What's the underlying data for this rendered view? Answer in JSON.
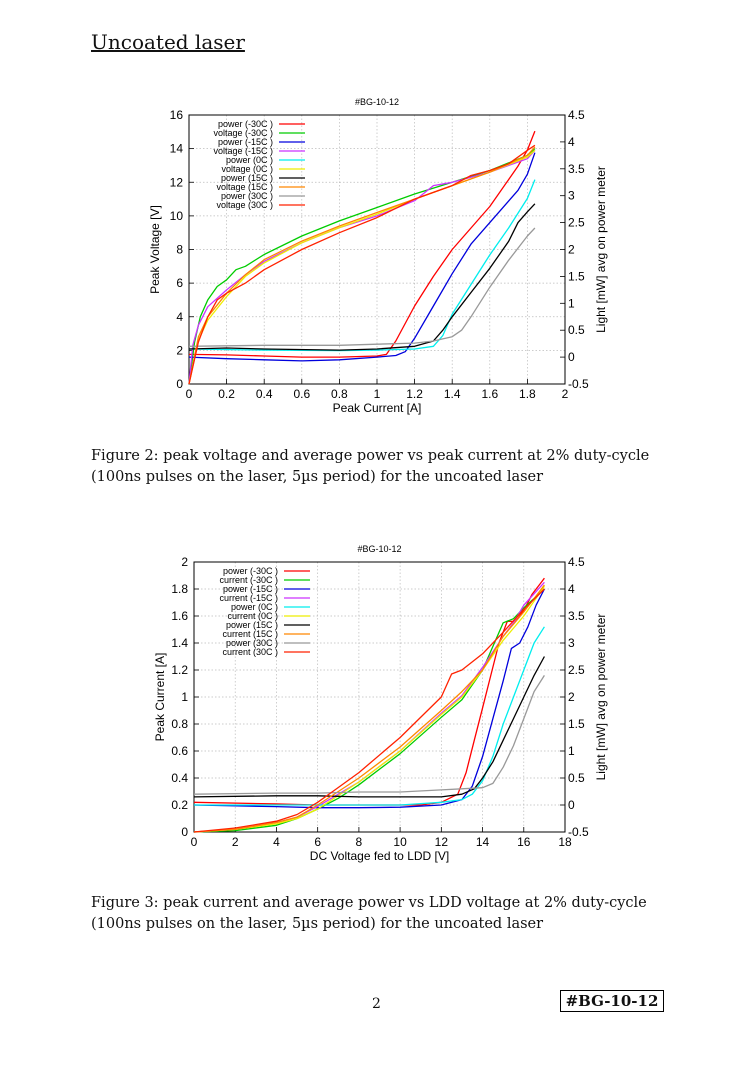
{
  "section_title": "Uncoated laser",
  "figures": [
    {
      "caption": "Figure 2: peak voltage and average power vs peak current at 2% duty-cycle (100ns pulses on the laser, 5µs period) for the uncoated laser",
      "chart_data": {
        "type": "line",
        "title": "#BG-10-12",
        "xlabel": "Peak Current [A]",
        "ylabel": "Peak Voltage [V]",
        "y2label": "Light [mW] avg on power meter",
        "xlim": [
          0,
          2
        ],
        "ylim": [
          0,
          16
        ],
        "y2lim": [
          -0.5,
          4.5
        ],
        "xticks": [
          "0",
          "0.2",
          "0.4",
          "0.6",
          "0.8",
          "1",
          "1.2",
          "1.4",
          "1.6",
          "1.8",
          "2"
        ],
        "yticks": [
          "0",
          "2",
          "4",
          "6",
          "8",
          "10",
          "12",
          "14",
          "16"
        ],
        "y2ticks": [
          "-0.5",
          "0",
          "0.5",
          "1",
          "1.5",
          "2",
          "2.5",
          "3",
          "3.5",
          "4",
          "4.5"
        ],
        "grid": true,
        "legend_position": "top-left",
        "series": [
          {
            "name": "power (-30C )",
            "color": "#ff0000",
            "axis": "y2",
            "x": [
              0,
              0.2,
              0.4,
              0.6,
              0.8,
              1.0,
              1.05,
              1.1,
              1.2,
              1.3,
              1.4,
              1.5,
              1.6,
              1.7,
              1.75,
              1.8,
              1.84
            ],
            "y": [
              0.05,
              0.04,
              0.02,
              0.0,
              0.0,
              0.02,
              0.05,
              0.3,
              0.95,
              1.5,
              2.0,
              2.4,
              2.8,
              3.3,
              3.55,
              3.85,
              4.2
            ]
          },
          {
            "name": "voltage (-30C )",
            "color": "#00cc00",
            "axis": "y",
            "x": [
              0,
              0.03,
              0.06,
              0.1,
              0.15,
              0.2,
              0.25,
              0.3,
              0.4,
              0.6,
              0.8,
              1.0,
              1.2,
              1.4,
              1.6,
              1.8,
              1.84
            ],
            "y": [
              0,
              2.5,
              4.0,
              5.0,
              5.8,
              6.2,
              6.8,
              7.0,
              7.7,
              8.8,
              9.7,
              10.5,
              11.3,
              12.0,
              12.7,
              13.6,
              14.0
            ]
          },
          {
            "name": "power (-15C )",
            "color": "#0000dd",
            "axis": "y2",
            "x": [
              0,
              0.2,
              0.4,
              0.6,
              0.8,
              1.0,
              1.1,
              1.15,
              1.2,
              1.3,
              1.4,
              1.5,
              1.6,
              1.7,
              1.75,
              1.8,
              1.84
            ],
            "y": [
              0.0,
              -0.03,
              -0.05,
              -0.07,
              -0.05,
              0.0,
              0.03,
              0.1,
              0.35,
              0.95,
              1.55,
              2.1,
              2.5,
              2.9,
              3.1,
              3.4,
              3.8
            ]
          },
          {
            "name": "voltage (-15C )",
            "color": "#cc33ff",
            "axis": "y",
            "x": [
              0,
              0.02,
              0.05,
              0.1,
              0.2,
              0.3,
              0.4,
              0.6,
              0.8,
              1.0,
              1.2,
              1.3,
              1.4,
              1.6,
              1.8,
              1.84
            ],
            "y": [
              0,
              2.3,
              3.5,
              4.6,
              5.6,
              6.5,
              7.3,
              8.4,
              9.3,
              10.0,
              10.9,
              11.8,
              12.0,
              12.6,
              13.4,
              13.9
            ]
          },
          {
            "name": "power (0C )",
            "color": "#00eeee",
            "axis": "y2",
            "x": [
              0,
              0.4,
              0.8,
              1.0,
              1.2,
              1.3,
              1.35,
              1.4,
              1.5,
              1.6,
              1.7,
              1.8,
              1.84
            ],
            "y": [
              0.15,
              0.13,
              0.12,
              0.13,
              0.15,
              0.2,
              0.4,
              0.8,
              1.35,
              1.9,
              2.4,
              2.95,
              3.3
            ]
          },
          {
            "name": "voltage (0C )",
            "color": "#eeee00",
            "axis": "y",
            "x": [
              0,
              0.05,
              0.1,
              0.2,
              0.3,
              0.4,
              0.6,
              0.8,
              1.0,
              1.2,
              1.4,
              1.6,
              1.8,
              1.84
            ],
            "y": [
              0,
              2.6,
              3.8,
              5.2,
              6.4,
              7.2,
              8.4,
              9.3,
              10.1,
              11.0,
              11.8,
              12.6,
              13.5,
              13.9
            ]
          },
          {
            "name": "power (15C )",
            "color": "#000000",
            "axis": "y2",
            "x": [
              0,
              0.2,
              0.4,
              0.8,
              1.0,
              1.2,
              1.3,
              1.35,
              1.4,
              1.5,
              1.6,
              1.7,
              1.75,
              1.8,
              1.84
            ],
            "y": [
              0.15,
              0.17,
              0.15,
              0.13,
              0.15,
              0.2,
              0.3,
              0.5,
              0.75,
              1.2,
              1.65,
              2.15,
              2.5,
              2.7,
              2.85
            ]
          },
          {
            "name": "voltage (15C )",
            "color": "#ff8800",
            "axis": "y",
            "x": [
              0,
              0.05,
              0.1,
              0.2,
              0.3,
              0.4,
              0.6,
              0.8,
              1.0,
              1.2,
              1.4,
              1.6,
              1.8,
              1.84
            ],
            "y": [
              0,
              2.8,
              4.0,
              5.4,
              6.5,
              7.4,
              8.5,
              9.4,
              10.2,
              11.0,
              11.8,
              12.6,
              13.6,
              14.1
            ]
          },
          {
            "name": "power (30C )",
            "color": "#999999",
            "axis": "y2",
            "x": [
              0,
              0.4,
              0.8,
              1.0,
              1.2,
              1.3,
              1.4,
              1.45,
              1.5,
              1.6,
              1.7,
              1.8,
              1.84
            ],
            "y": [
              0.2,
              0.22,
              0.22,
              0.24,
              0.26,
              0.3,
              0.38,
              0.5,
              0.75,
              1.3,
              1.8,
              2.25,
              2.4
            ]
          },
          {
            "name": "voltage (30C )",
            "color": "#ff2200",
            "axis": "y",
            "x": [
              0,
              0.05,
              0.1,
              0.15,
              0.2,
              0.3,
              0.4,
              0.6,
              0.8,
              1.0,
              1.2,
              1.4,
              1.5,
              1.6,
              1.7,
              1.8,
              1.84
            ],
            "y": [
              0,
              2.5,
              4.0,
              5.0,
              5.4,
              6.0,
              6.8,
              8.0,
              9.0,
              9.9,
              11.0,
              11.8,
              12.4,
              12.7,
              13.1,
              13.9,
              14.2
            ]
          }
        ]
      }
    },
    {
      "caption": "Figure 3: peak current and average power vs LDD voltage at 2% duty-cycle (100ns pulses on the laser, 5µs period) for the uncoated laser",
      "chart_data": {
        "type": "line",
        "title": "#BG-10-12",
        "xlabel": "DC Voltage fed to LDD [V]",
        "ylabel": "Peak Current [A]",
        "y2label": "Light [mW] avg on power meter",
        "xlim": [
          0,
          18
        ],
        "ylim": [
          0,
          2
        ],
        "y2lim": [
          -0.5,
          4.5
        ],
        "xticks": [
          "0",
          "2",
          "4",
          "6",
          "8",
          "10",
          "12",
          "14",
          "16",
          "18"
        ],
        "yticks": [
          "0",
          "0.2",
          "0.4",
          "0.6",
          "0.8",
          "1",
          "1.2",
          "1.4",
          "1.6",
          "1.8",
          "2"
        ],
        "y2ticks": [
          "-0.5",
          "0",
          "0.5",
          "1",
          "1.5",
          "2",
          "2.5",
          "3",
          "3.5",
          "4",
          "4.5"
        ],
        "grid": true,
        "legend_position": "top-left",
        "series": [
          {
            "name": "power (-30C )",
            "color": "#ff0000",
            "axis": "y2",
            "x": [
              0,
              4,
              6,
              8,
              10,
              11,
              12,
              12.8,
              13.2,
              13.6,
              14,
              14.4,
              14.8,
              15.2,
              15.6,
              16,
              16.4,
              16.8,
              17
            ],
            "y": [
              0.05,
              0.02,
              0.0,
              0.0,
              0.0,
              0.0,
              0.05,
              0.2,
              0.6,
              1.2,
              1.8,
              2.4,
              3.0,
              3.4,
              3.4,
              3.6,
              3.9,
              4.1,
              4.2
            ]
          },
          {
            "name": "current (-30C )",
            "color": "#00cc00",
            "axis": "y",
            "x": [
              0,
              2,
              4,
              5,
              6,
              7,
              8,
              10,
              12,
              13,
              14,
              15,
              15.5,
              16,
              17
            ],
            "y": [
              0,
              0.01,
              0.05,
              0.1,
              0.17,
              0.25,
              0.35,
              0.58,
              0.85,
              0.98,
              1.2,
              1.55,
              1.58,
              1.66,
              1.8
            ]
          },
          {
            "name": "power (-15C )",
            "color": "#0000dd",
            "axis": "y2",
            "x": [
              0,
              4,
              6,
              8,
              10,
              12,
              13,
              13.5,
              14,
              14.5,
              15,
              15.4,
              15.8,
              16.2,
              16.6,
              17
            ],
            "y": [
              0.0,
              -0.03,
              -0.05,
              -0.05,
              -0.04,
              0.0,
              0.1,
              0.35,
              0.9,
              1.6,
              2.3,
              2.9,
              3.0,
              3.3,
              3.7,
              4.0
            ]
          },
          {
            "name": "current (-15C )",
            "color": "#cc33ff",
            "axis": "y",
            "x": [
              0,
              2,
              4,
              5,
              6,
              7,
              8,
              10,
              12,
              13,
              14,
              15,
              15.5,
              16,
              17
            ],
            "y": [
              0,
              0.02,
              0.07,
              0.11,
              0.19,
              0.28,
              0.37,
              0.6,
              0.88,
              1.01,
              1.22,
              1.45,
              1.55,
              1.68,
              1.85
            ]
          },
          {
            "name": "power (0C )",
            "color": "#00eeee",
            "axis": "y2",
            "x": [
              0,
              6,
              10,
              12,
              13,
              13.5,
              14,
              14.5,
              15,
              15.5,
              16,
              16.5,
              17
            ],
            "y": [
              0.0,
              0.0,
              0.0,
              0.05,
              0.1,
              0.2,
              0.45,
              0.9,
              1.5,
              2.0,
              2.5,
              3.0,
              3.3
            ]
          },
          {
            "name": "current (0C )",
            "color": "#eeee00",
            "axis": "y",
            "x": [
              0,
              2,
              4,
              5,
              6,
              7,
              8,
              10,
              12,
              13,
              14,
              15,
              16,
              17
            ],
            "y": [
              0,
              0.02,
              0.06,
              0.1,
              0.17,
              0.27,
              0.37,
              0.6,
              0.87,
              1.0,
              1.2,
              1.42,
              1.6,
              1.82
            ]
          },
          {
            "name": "power (15C )",
            "color": "#000000",
            "axis": "y2",
            "x": [
              0,
              4,
              6,
              8,
              10,
              12,
              13,
              13.6,
              14,
              14.5,
              15,
              15.5,
              16,
              16.5,
              17
            ],
            "y": [
              0.15,
              0.17,
              0.17,
              0.15,
              0.15,
              0.15,
              0.2,
              0.3,
              0.5,
              0.8,
              1.2,
              1.6,
              2.0,
              2.4,
              2.75
            ]
          },
          {
            "name": "current (15C )",
            "color": "#ff8800",
            "axis": "y",
            "x": [
              0,
              2,
              4,
              5,
              6,
              7,
              8,
              10,
              12,
              13,
              14,
              15,
              16,
              17
            ],
            "y": [
              0,
              0.02,
              0.07,
              0.11,
              0.2,
              0.3,
              0.4,
              0.63,
              0.9,
              1.04,
              1.2,
              1.45,
              1.63,
              1.83
            ]
          },
          {
            "name": "power (30C )",
            "color": "#999999",
            "axis": "y2",
            "x": [
              0,
              4,
              6,
              8,
              10,
              12,
              13,
              14,
              14.5,
              15,
              15.5,
              16,
              16.5,
              17
            ],
            "y": [
              0.2,
              0.22,
              0.22,
              0.24,
              0.24,
              0.28,
              0.3,
              0.32,
              0.4,
              0.7,
              1.1,
              1.6,
              2.1,
              2.4
            ]
          },
          {
            "name": "current (30C )",
            "color": "#ff2200",
            "axis": "y",
            "x": [
              0,
              2,
              4,
              5,
              6,
              7,
              8,
              10,
              12,
              12.5,
              13,
              14,
              15,
              16,
              17
            ],
            "y": [
              0,
              0.03,
              0.08,
              0.13,
              0.22,
              0.33,
              0.44,
              0.7,
              1.0,
              1.17,
              1.2,
              1.32,
              1.48,
              1.65,
              1.8
            ]
          }
        ]
      }
    }
  ],
  "page_number": "2",
  "doc_tag": "#BG-10-12"
}
